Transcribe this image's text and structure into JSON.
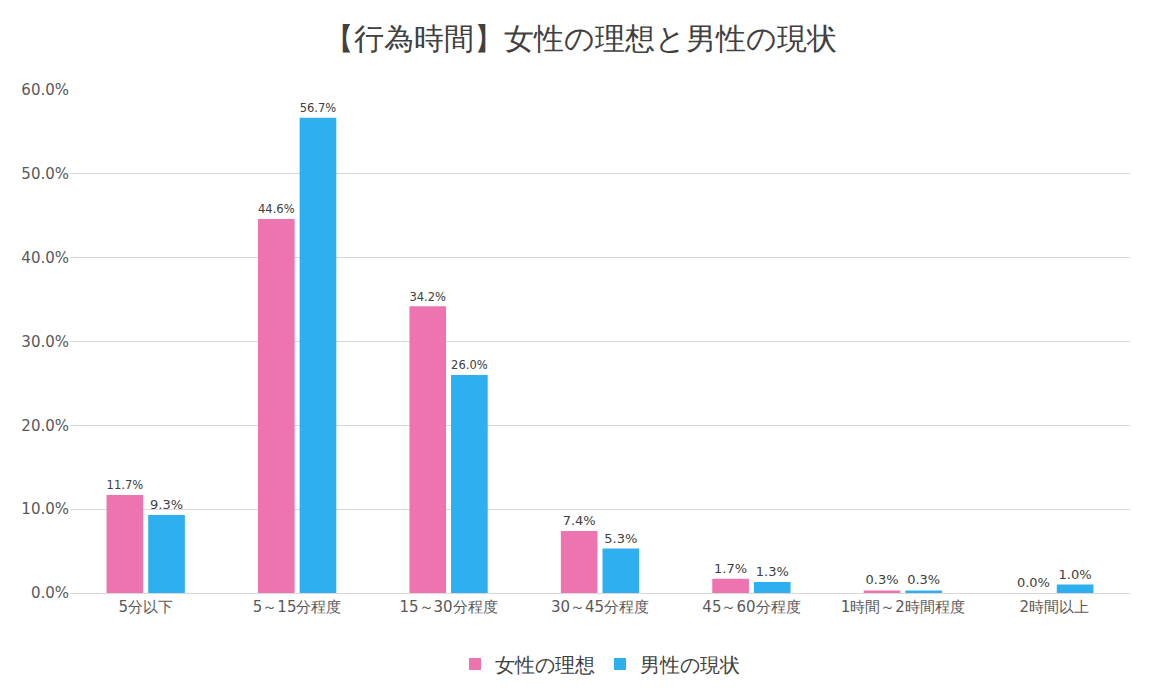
{
  "chart_data": {
    "type": "bar",
    "title": "【行為時間】女性の理想と男性の現状",
    "categories": [
      "5分以下",
      "5～15分程度",
      "15～30分程度",
      "30～45分程度",
      "45～60分程度",
      "1時間～2時間程度",
      "2時間以上"
    ],
    "series": [
      {
        "name": "女性の理想",
        "color": "#ee74b0",
        "values": [
          11.7,
          44.6,
          34.2,
          7.4,
          1.7,
          0.3,
          0.0
        ],
        "value_labels": [
          "11.7%",
          "44.6%",
          "34.2%",
          "7.4%",
          "1.7%",
          "0.3%",
          "0.0%"
        ]
      },
      {
        "name": "男性の現状",
        "color": "#2eaff0",
        "values": [
          9.3,
          56.7,
          26.0,
          5.3,
          1.3,
          0.3,
          1.0
        ],
        "value_labels": [
          "9.3%",
          "56.7%",
          "26.0%",
          "5.3%",
          "1.3%",
          "0.3%",
          "1.0%"
        ]
      }
    ],
    "ylim": [
      0,
      60
    ],
    "yticks": [
      {
        "value": 0,
        "label": "0.0%"
      },
      {
        "value": 10,
        "label": "10.0%"
      },
      {
        "value": 20,
        "label": "20.0%"
      },
      {
        "value": 30,
        "label": "30.0%"
      },
      {
        "value": 40,
        "label": "40.0%"
      },
      {
        "value": 50,
        "label": "50.0%"
      },
      {
        "value": 60,
        "label": "60.0%"
      }
    ],
    "grid": true,
    "legend": "bottom",
    "data_labels": true
  }
}
